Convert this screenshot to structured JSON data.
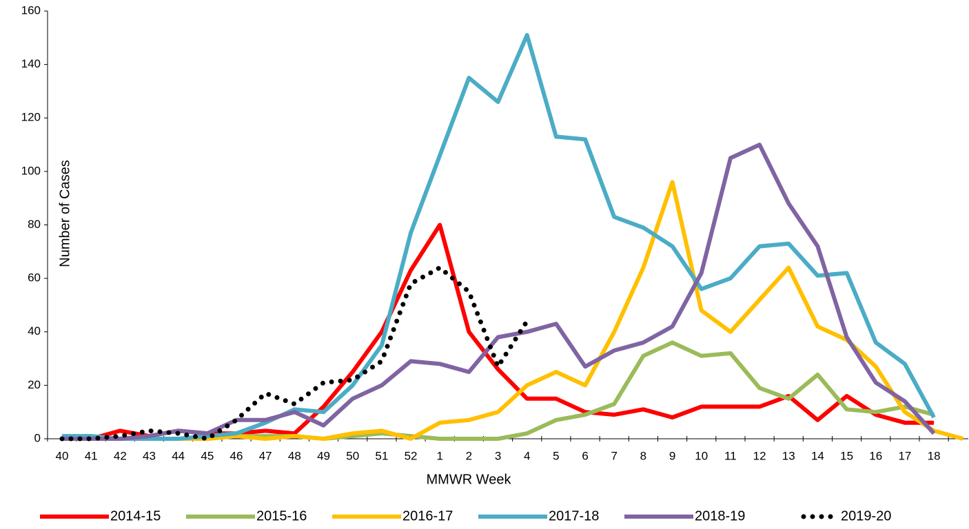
{
  "chart_data": {
    "type": "line",
    "x_label": "MMWR Week",
    "y_label": "Number of Cases",
    "categories": [
      "40",
      "41",
      "42",
      "43",
      "44",
      "45",
      "46",
      "47",
      "48",
      "49",
      "50",
      "51",
      "52",
      "1",
      "2",
      "3",
      "4",
      "5",
      "6",
      "7",
      "8",
      "9",
      "10",
      "11",
      "12",
      "13",
      "14",
      "15",
      "16",
      "17",
      "18",
      null
    ],
    "ylim": [
      0,
      160
    ],
    "yticks": [
      0,
      20,
      40,
      60,
      80,
      100,
      120,
      140,
      160
    ],
    "grid": false,
    "legend": "bottom",
    "series": [
      {
        "name": "2014-15",
        "color": "#ff0000",
        "style": "solid",
        "values": [
          0,
          0,
          3,
          1,
          3,
          2,
          2,
          3,
          2,
          12,
          25,
          40,
          63,
          80,
          40,
          26,
          15,
          15,
          10,
          9,
          11,
          8,
          12,
          12,
          12,
          16,
          7,
          16,
          9,
          6,
          6,
          null
        ]
      },
      {
        "name": "2015-16",
        "color": "#9bbb59",
        "style": "solid",
        "values": [
          0,
          0,
          0,
          0,
          0,
          0,
          1,
          1,
          1,
          0,
          1,
          2,
          1,
          0,
          0,
          0,
          2,
          7,
          9,
          13,
          31,
          36,
          31,
          32,
          19,
          15,
          24,
          11,
          10,
          12,
          9,
          null
        ]
      },
      {
        "name": "2016-17",
        "color": "#ffc000",
        "style": "solid",
        "values": [
          0,
          0,
          0,
          0,
          0,
          0,
          1,
          0,
          1,
          0,
          2,
          3,
          0,
          6,
          7,
          10,
          20,
          25,
          20,
          40,
          64,
          96,
          48,
          40,
          52,
          64,
          42,
          37,
          27,
          10,
          3,
          0
        ]
      },
      {
        "name": "2017-18",
        "color": "#4bacc6",
        "style": "solid",
        "values": [
          1,
          1,
          0,
          0,
          0,
          1,
          2,
          6,
          11,
          10,
          20,
          35,
          77,
          106,
          135,
          126,
          151,
          113,
          112,
          83,
          79,
          72,
          56,
          60,
          72,
          73,
          61,
          62,
          36,
          28,
          8,
          null
        ]
      },
      {
        "name": "2018-19",
        "color": "#8064a2",
        "style": "solid",
        "values": [
          0,
          0,
          0,
          1,
          3,
          2,
          7,
          7,
          10,
          5,
          15,
          20,
          29,
          28,
          25,
          38,
          40,
          43,
          27,
          33,
          36,
          42,
          62,
          105,
          110,
          88,
          72,
          38,
          21,
          14,
          2,
          null
        ]
      },
      {
        "name": "2019-20",
        "color": "#000000",
        "style": "dotted",
        "values": [
          0,
          0,
          1,
          3,
          2,
          0,
          7,
          17,
          13,
          21,
          22,
          29,
          58,
          64,
          55,
          27,
          44,
          null,
          null,
          null,
          null,
          null,
          null,
          null,
          null,
          null,
          null,
          null,
          null,
          null,
          null,
          null
        ]
      }
    ]
  }
}
